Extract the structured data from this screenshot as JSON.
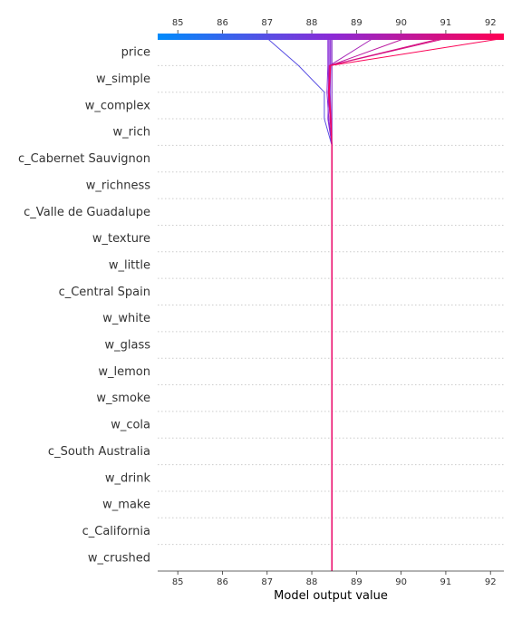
{
  "chart_data": {
    "type": "line",
    "title": "",
    "xlabel": "Model output value",
    "xlim": [
      84.55,
      92.3
    ],
    "x_ticks": [
      85,
      86,
      87,
      88,
      89,
      90,
      91,
      92
    ],
    "base_value": 88.45,
    "colormap": [
      "#008bfb",
      "#ff0052"
    ],
    "features": [
      "price",
      "w_simple",
      "w_complex",
      "w_rich",
      "c_Cabernet Sauvignon",
      "w_richness",
      "c_Valle de Guadalupe",
      "w_texture",
      "w_little",
      "c_Central Spain",
      "w_white",
      "w_glass",
      "w_lemon",
      "w_smoke",
      "w_cola",
      "c_South Australia",
      "w_drink",
      "w_make",
      "c_California",
      "w_crushed"
    ],
    "series": [
      {
        "values": [
          88.45,
          88.45,
          88.45,
          88.45,
          88.45,
          88.45,
          88.45,
          88.45,
          88.45,
          88.45,
          88.45,
          88.45,
          88.45,
          88.45,
          88.45,
          88.45,
          88.45,
          88.45,
          88.45,
          88.45,
          88.45
        ]
      },
      {
        "values": [
          87.02,
          87.7,
          88.28,
          88.28,
          88.45,
          88.45,
          88.45,
          88.45,
          88.45,
          88.45,
          88.45,
          88.45,
          88.45,
          88.45,
          88.45,
          88.45,
          88.45,
          88.45,
          88.45,
          88.45,
          88.45
        ]
      },
      {
        "values": [
          88.37,
          88.37,
          88.38,
          88.36,
          88.45,
          88.45,
          88.45,
          88.45,
          88.45,
          88.45,
          88.45,
          88.45,
          88.45,
          88.45,
          88.45,
          88.45,
          88.45,
          88.45,
          88.45,
          88.45,
          88.45
        ]
      },
      {
        "values": [
          88.36,
          88.36,
          88.34,
          88.38,
          88.45,
          88.45,
          88.45,
          88.45,
          88.45,
          88.45,
          88.45,
          88.45,
          88.45,
          88.45,
          88.45,
          88.45,
          88.45,
          88.45,
          88.45,
          88.45,
          88.45
        ]
      },
      {
        "values": [
          88.4,
          88.4,
          88.39,
          88.42,
          88.45,
          88.45,
          88.45,
          88.45,
          88.45,
          88.45,
          88.45,
          88.45,
          88.45,
          88.45,
          88.45,
          88.45,
          88.45,
          88.45,
          88.45,
          88.45,
          88.45
        ]
      },
      {
        "values": [
          88.42,
          88.42,
          88.41,
          88.43,
          88.45,
          88.45,
          88.45,
          88.45,
          88.45,
          88.45,
          88.45,
          88.45,
          88.45,
          88.45,
          88.45,
          88.45,
          88.45,
          88.45,
          88.45,
          88.45,
          88.45
        ]
      },
      {
        "values": [
          89.35,
          88.4,
          88.38,
          88.42,
          88.45,
          88.45,
          88.45,
          88.45,
          88.45,
          88.45,
          88.45,
          88.45,
          88.45,
          88.45,
          88.45,
          88.45,
          88.45,
          88.45,
          88.45,
          88.45,
          88.45
        ]
      },
      {
        "values": [
          90.05,
          88.41,
          88.37,
          88.41,
          88.45,
          88.45,
          88.45,
          88.45,
          88.45,
          88.45,
          88.45,
          88.45,
          88.45,
          88.45,
          88.45,
          88.45,
          88.45,
          88.45,
          88.45,
          88.45,
          88.45
        ]
      },
      {
        "values": [
          90.85,
          88.39,
          88.38,
          88.42,
          88.45,
          88.45,
          88.45,
          88.45,
          88.45,
          88.45,
          88.45,
          88.45,
          88.45,
          88.45,
          88.45,
          88.45,
          88.45,
          88.45,
          88.45,
          88.45,
          88.45
        ]
      },
      {
        "values": [
          90.95,
          88.4,
          88.37,
          88.41,
          88.45,
          88.45,
          88.45,
          88.45,
          88.45,
          88.45,
          88.45,
          88.45,
          88.45,
          88.45,
          88.45,
          88.45,
          88.45,
          88.45,
          88.45,
          88.45,
          88.45
        ]
      },
      {
        "values": [
          92.2,
          88.42,
          88.39,
          88.43,
          88.45,
          88.45,
          88.45,
          88.45,
          88.45,
          88.45,
          88.45,
          88.45,
          88.45,
          88.45,
          88.45,
          88.45,
          88.45,
          88.45,
          88.45,
          88.45,
          88.45
        ]
      }
    ]
  }
}
